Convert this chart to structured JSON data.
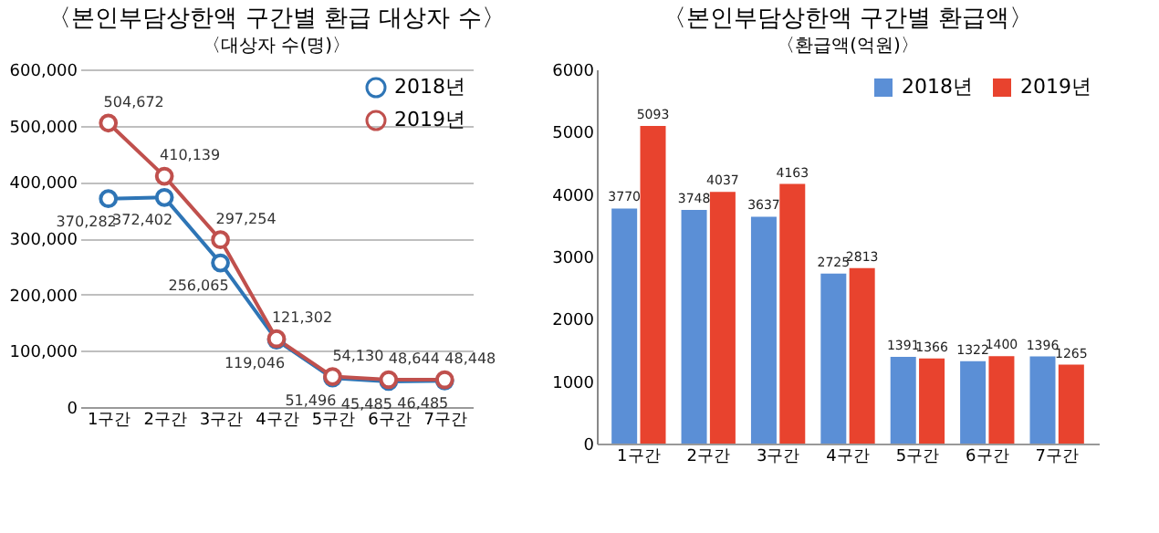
{
  "chart_data": [
    {
      "type": "line",
      "title": "〈본인부담상한액 구간별 환급 대상자 수〉",
      "subtitle": "〈대상자 수(명)〉",
      "categories": [
        "1구간",
        "2구간",
        "3구간",
        "4구간",
        "5구간",
        "6구간",
        "7구간"
      ],
      "series": [
        {
          "name": "2018년",
          "color": "#2e75b6",
          "values": [
            370282,
            372402,
            256065,
            119046,
            51496,
            45485,
            46485
          ],
          "value_labels": [
            "370,282",
            "372,402",
            "256,065",
            "119,046",
            "51,496",
            "45,485",
            "46,485"
          ]
        },
        {
          "name": "2019년",
          "color": "#c0504d",
          "values": [
            504672,
            410139,
            297254,
            121302,
            54130,
            48644,
            48448
          ],
          "value_labels": [
            "504,672",
            "410,139",
            "297,254",
            "121,302",
            "54,130",
            "48,644",
            "48,448"
          ]
        }
      ],
      "ylim": [
        0,
        600000
      ],
      "yticks": [
        {
          "value": 0,
          "label": "0"
        },
        {
          "value": 100000,
          "label": "100,000"
        },
        {
          "value": 200000,
          "label": "200,000"
        },
        {
          "value": 300000,
          "label": "300,000"
        },
        {
          "value": 400000,
          "label": "400,000"
        },
        {
          "value": 500000,
          "label": "500,000"
        },
        {
          "value": 600000,
          "label": "600,000"
        }
      ],
      "grid": "y",
      "legend": "top right",
      "marker": "circle"
    },
    {
      "type": "bar",
      "title": "〈본인부담상한액 구간별 환급액〉",
      "subtitle": "〈환급액(억원)〉",
      "categories": [
        "1구간",
        "2구간",
        "3구간",
        "4구간",
        "5구간",
        "6구간",
        "7구간"
      ],
      "series": [
        {
          "name": "2018년",
          "color": "#5b8fd6",
          "values": [
            3770,
            3748,
            3637,
            2725,
            1391,
            1322,
            1396
          ]
        },
        {
          "name": "2019년",
          "color": "#e8432e",
          "values": [
            5093,
            4037,
            4163,
            2813,
            1366,
            1400,
            1265
          ]
        }
      ],
      "ylim": [
        0,
        6000
      ],
      "yticks": [
        0,
        1000,
        2000,
        3000,
        4000,
        5000,
        6000
      ],
      "data_labels": true,
      "legend": "top right"
    }
  ]
}
